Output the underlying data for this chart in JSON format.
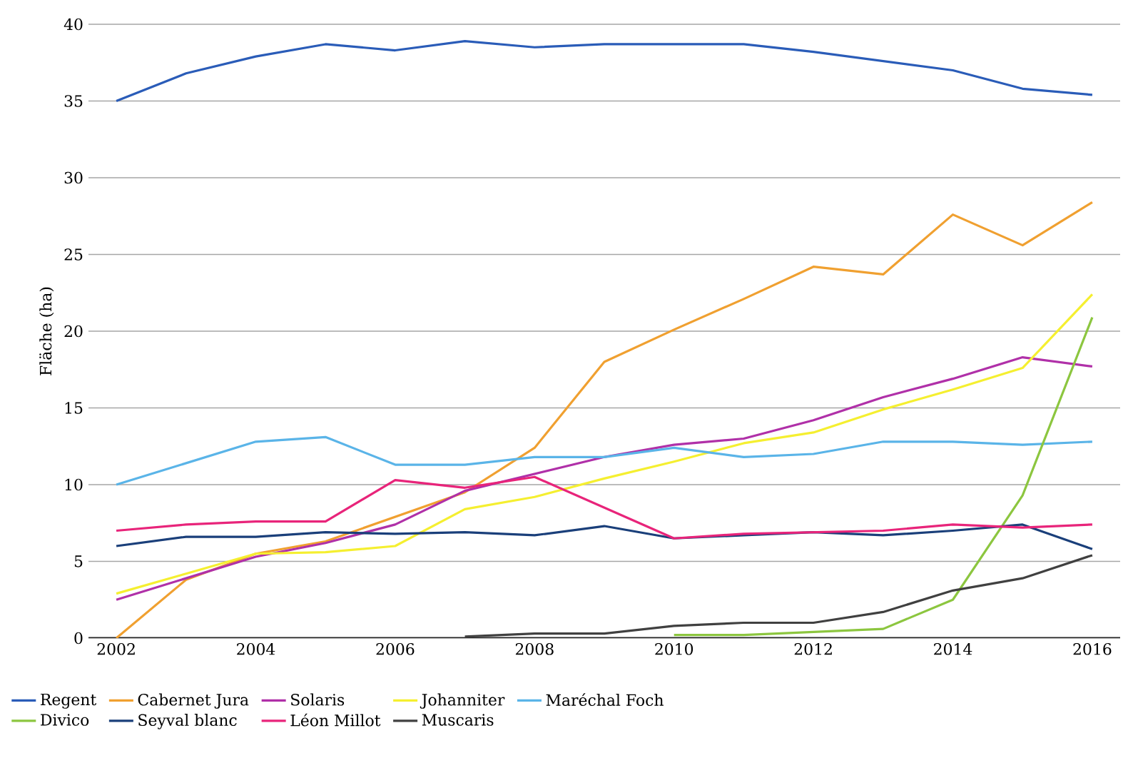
{
  "chart_data": {
    "type": "line",
    "ylabel": "Fläche (ha)",
    "x": [
      2002,
      2003,
      2004,
      2005,
      2006,
      2007,
      2008,
      2009,
      2010,
      2011,
      2012,
      2013,
      2014,
      2015,
      2016
    ],
    "xlim": [
      2001.6,
      2016.4
    ],
    "xticks": [
      2002,
      2004,
      2006,
      2008,
      2010,
      2012,
      2014,
      2016
    ],
    "ylim": [
      0,
      40
    ],
    "yticks": [
      0,
      5,
      10,
      15,
      20,
      25,
      30,
      35,
      40
    ],
    "grid": "y",
    "legend": "bottom",
    "marker": "none",
    "line_style": "solid",
    "series": [
      {
        "name": "Regent",
        "color": "#2a5cb8",
        "values": [
          35,
          36.8,
          37.9,
          38.7,
          38.3,
          38.9,
          38.5,
          38.7,
          38.7,
          38.7,
          38.2,
          37.6,
          37.0,
          35.8,
          35.4
        ]
      },
      {
        "name": "Cabernet Jura",
        "color": "#f0a030",
        "values": [
          0,
          3.8,
          5.5,
          6.3,
          7.9,
          9.5,
          12.4,
          18.0,
          20.1,
          22.1,
          24.2,
          23.7,
          27.6,
          25.6,
          28.4
        ]
      },
      {
        "name": "Solaris",
        "color": "#b030a8",
        "values": [
          2.5,
          3.9,
          5.3,
          6.2,
          7.4,
          9.6,
          10.7,
          11.8,
          12.6,
          13.0,
          14.2,
          15.7,
          16.9,
          18.3,
          17.7
        ]
      },
      {
        "name": "Johanniter",
        "color": "#f5ef30",
        "values": [
          2.9,
          4.2,
          5.5,
          5.6,
          6.0,
          8.4,
          9.2,
          10.4,
          11.5,
          12.7,
          13.4,
          14.9,
          16.2,
          17.6,
          22.4
        ]
      },
      {
        "name": "Maréchal Foch",
        "color": "#5ab4e8",
        "values": [
          10,
          11.4,
          12.8,
          13.1,
          11.3,
          11.3,
          11.8,
          11.8,
          12.4,
          11.8,
          12.0,
          12.8,
          12.8,
          12.6,
          12.8
        ]
      },
      {
        "name": "Divico",
        "color": "#8cc63f",
        "values": [
          null,
          null,
          null,
          null,
          null,
          null,
          null,
          null,
          0.2,
          0.2,
          0.4,
          0.6,
          2.5,
          9.3,
          20.9
        ]
      },
      {
        "name": "Seyval blanc",
        "color": "#1a3f7a",
        "values": [
          6.0,
          6.6,
          6.6,
          6.9,
          6.8,
          6.9,
          6.7,
          7.3,
          6.5,
          6.7,
          6.9,
          6.7,
          7.0,
          7.4,
          5.8
        ]
      },
      {
        "name": "Léon Millot",
        "color": "#e8247a",
        "values": [
          7.0,
          7.4,
          7.6,
          7.6,
          10.3,
          9.8,
          10.5,
          8.5,
          6.5,
          6.8,
          6.9,
          7.0,
          7.4,
          7.2,
          7.4
        ]
      },
      {
        "name": "Muscaris",
        "color": "#404040",
        "values": [
          null,
          null,
          null,
          null,
          null,
          0.1,
          0.3,
          0.3,
          0.8,
          1.0,
          1.0,
          1.7,
          3.1,
          3.9,
          5.4
        ]
      }
    ]
  }
}
